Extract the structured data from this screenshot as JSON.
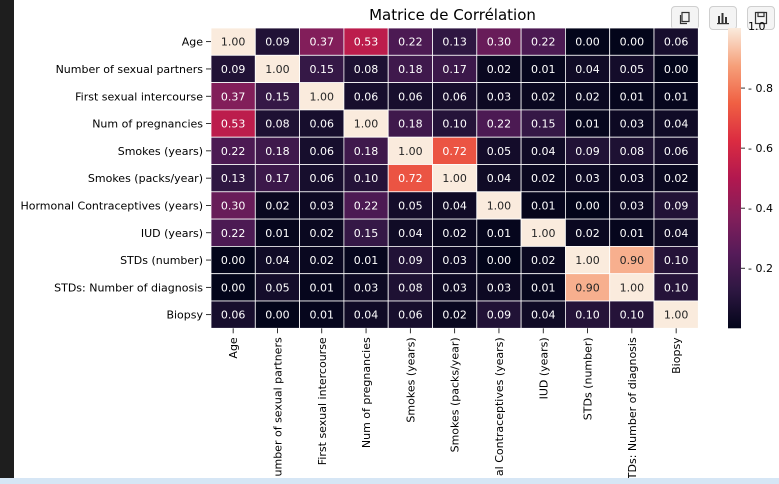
{
  "chart_data": {
    "type": "heatmap",
    "title": "Matrice de Corrélation",
    "row_labels": [
      "Age",
      "Number of sexual partners",
      "First sexual intercourse",
      "Num of pregnancies",
      "Smokes (years)",
      "Smokes (packs/year)",
      "Hormonal Contraceptives (years)",
      "IUD (years)",
      "STDs (number)",
      "STDs: Number of diagnosis",
      "Biopsy"
    ],
    "col_labels": [
      "Age",
      "umber of sexual partners",
      "First sexual intercourse",
      "Num of pregnancies",
      "Smokes (years)",
      "Smokes (packs/year)",
      "al Contraceptives (years)",
      "IUD (years)",
      "STDs (number)",
      "TDs: Number of diagnosis",
      "Biopsy"
    ],
    "values": [
      [
        1.0,
        0.09,
        0.37,
        0.53,
        0.22,
        0.13,
        0.3,
        0.22,
        0.0,
        0.0,
        0.06
      ],
      [
        0.09,
        1.0,
        0.15,
        0.08,
        0.18,
        0.17,
        0.02,
        0.01,
        0.04,
        0.05,
        0.0
      ],
      [
        0.37,
        0.15,
        1.0,
        0.06,
        0.06,
        0.06,
        0.03,
        0.02,
        0.02,
        0.01,
        0.01
      ],
      [
        0.53,
        0.08,
        0.06,
        1.0,
        0.18,
        0.1,
        0.22,
        0.15,
        0.01,
        0.03,
        0.04
      ],
      [
        0.22,
        0.18,
        0.06,
        0.18,
        1.0,
        0.72,
        0.05,
        0.04,
        0.09,
        0.08,
        0.06
      ],
      [
        0.13,
        0.17,
        0.06,
        0.1,
        0.72,
        1.0,
        0.04,
        0.02,
        0.03,
        0.03,
        0.02
      ],
      [
        0.3,
        0.02,
        0.03,
        0.22,
        0.05,
        0.04,
        1.0,
        0.01,
        0.0,
        0.03,
        0.09
      ],
      [
        0.22,
        0.01,
        0.02,
        0.15,
        0.04,
        0.02,
        0.01,
        1.0,
        0.02,
        0.01,
        0.04
      ],
      [
        0.0,
        0.04,
        0.02,
        0.01,
        0.09,
        0.03,
        0.0,
        0.02,
        1.0,
        0.9,
        0.1
      ],
      [
        0.0,
        0.05,
        0.01,
        0.03,
        0.08,
        0.03,
        0.03,
        0.01,
        0.9,
        1.0,
        0.1
      ],
      [
        0.06,
        0.0,
        0.01,
        0.04,
        0.06,
        0.02,
        0.09,
        0.04,
        0.1,
        0.1,
        1.0
      ]
    ],
    "colorbar_ticks": [
      0.2,
      0.4,
      0.6,
      0.8
    ],
    "colorbar_top_tick_label": "1.0",
    "colormap": "rocket",
    "value_range": [
      0,
      1
    ]
  },
  "toolbar": {
    "buttons": [
      {
        "name": "copy-button",
        "icon": "copy-icon"
      },
      {
        "name": "chart-button",
        "icon": "bar-chart-icon"
      },
      {
        "name": "save-button",
        "icon": "floppy-icon"
      }
    ]
  },
  "colors": {
    "page_background": "#ffffff",
    "outer_background": "#1e1e1e",
    "bottom_strip": "#d6e6f5"
  }
}
